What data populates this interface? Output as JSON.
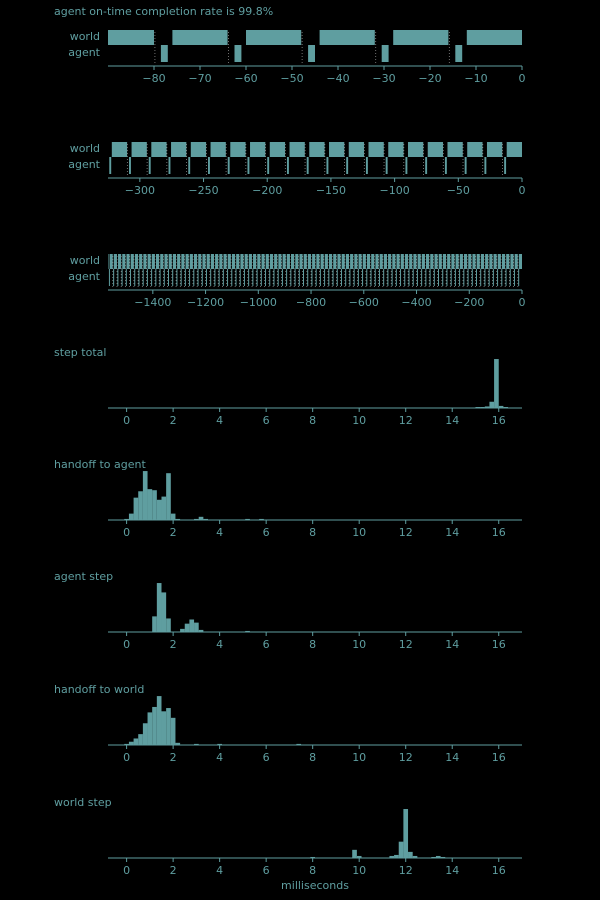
{
  "colors": {
    "background": "#000000",
    "bar": "#5f9ea0",
    "axis": "#5f9ea0",
    "label": "#5f9ea0",
    "tick_label": "#5f9ea0",
    "dotted_line": "#8a8a8a"
  },
  "chart_data": [
    {
      "type": "timeline",
      "title": "agent on-time completion rate is 99.8%",
      "row_labels": [
        "world",
        "agent"
      ],
      "xlim": [
        -90,
        0
      ],
      "xticks": [
        -80,
        -70,
        -60,
        -50,
        -40,
        -30,
        -20,
        -10,
        0
      ],
      "tick_labels": [
        "−80",
        "−70",
        "−60",
        "−50",
        "−40",
        "−30",
        "−20",
        "−10",
        "0"
      ],
      "world_period": 16,
      "world_duration": 12,
      "world_last_start": -12,
      "agent_offset": 13.5,
      "agent_duration": 1.5,
      "dotted_offset": 12.2,
      "dotted_count": 6
    },
    {
      "type": "timeline",
      "row_labels": [
        "world",
        "agent"
      ],
      "xlim": [
        -325,
        0
      ],
      "xticks": [
        -300,
        -250,
        -200,
        -150,
        -100,
        -50,
        0
      ],
      "tick_labels": [
        "−300",
        "−250",
        "−200",
        "−150",
        "−100",
        "−50",
        "0"
      ],
      "world_period": 15.5,
      "world_duration": 12,
      "world_last_start": -12,
      "agent_offset": 13.5,
      "agent_duration": 1.5,
      "dotted_offset": 12.2,
      "dotted_count": 20
    },
    {
      "type": "timeline",
      "row_labels": [
        "world",
        "agent"
      ],
      "xlim": [
        -1570,
        0
      ],
      "xticks": [
        -1400,
        -1200,
        -1000,
        -800,
        -600,
        -400,
        -200,
        0
      ],
      "tick_labels": [
        "−1400",
        "−1200",
        "−1000",
        "−800",
        "−600",
        "−400",
        "−200",
        "0"
      ],
      "world_period": 16,
      "world_duration": 12,
      "world_last_start": -12,
      "agent_offset": 13.5,
      "agent_duration": 1.5,
      "dotted_offset": 12.2,
      "dotted_count": 97
    },
    {
      "type": "bar",
      "title": "step total",
      "xlim": [
        -0.8,
        17
      ],
      "xticks": [
        0,
        2,
        4,
        6,
        8,
        10,
        12,
        14,
        16
      ],
      "bin_width": 0.2,
      "ymax": 48,
      "bins": [
        [
          15.0,
          0.3
        ],
        [
          15.2,
          0.6
        ],
        [
          15.4,
          1.5
        ],
        [
          15.6,
          6
        ],
        [
          15.8,
          47
        ],
        [
          16.0,
          2
        ],
        [
          16.2,
          0.6
        ]
      ]
    },
    {
      "type": "bar",
      "title": "handoff to agent",
      "xlim": [
        -0.8,
        17
      ],
      "xticks": [
        0,
        2,
        4,
        6,
        8,
        10,
        12,
        14,
        16
      ],
      "bin_width": 0.2,
      "ymax": 47,
      "bins": [
        [
          -0.1,
          1
        ],
        [
          0.1,
          6
        ],
        [
          0.3,
          21
        ],
        [
          0.5,
          27
        ],
        [
          0.7,
          46
        ],
        [
          0.9,
          29
        ],
        [
          1.1,
          28
        ],
        [
          1.3,
          19
        ],
        [
          1.5,
          22
        ],
        [
          1.7,
          44
        ],
        [
          1.9,
          6
        ],
        [
          2.1,
          1
        ],
        [
          2.9,
          1
        ],
        [
          3.1,
          3
        ],
        [
          3.3,
          1
        ],
        [
          5.1,
          1
        ],
        [
          5.7,
          1
        ]
      ]
    },
    {
      "type": "bar",
      "title": "agent step",
      "xlim": [
        -0.8,
        17
      ],
      "xticks": [
        0,
        2,
        4,
        6,
        8,
        10,
        12,
        14,
        16
      ],
      "bin_width": 0.2,
      "ymax": 48,
      "bins": [
        [
          1.1,
          15
        ],
        [
          1.3,
          47
        ],
        [
          1.5,
          38
        ],
        [
          1.7,
          13
        ],
        [
          2.3,
          3
        ],
        [
          2.5,
          8
        ],
        [
          2.7,
          12
        ],
        [
          2.9,
          9
        ],
        [
          3.1,
          2
        ],
        [
          5.1,
          1
        ]
      ]
    },
    {
      "type": "bar",
      "title": "handoff to world",
      "xlim": [
        -0.8,
        17
      ],
      "xticks": [
        0,
        2,
        4,
        6,
        8,
        10,
        12,
        14,
        16
      ],
      "bin_width": 0.2,
      "ymax": 46,
      "bins": [
        [
          -0.1,
          1
        ],
        [
          0.1,
          3
        ],
        [
          0.3,
          6
        ],
        [
          0.5,
          10
        ],
        [
          0.7,
          20
        ],
        [
          0.9,
          30
        ],
        [
          1.1,
          35
        ],
        [
          1.3,
          45
        ],
        [
          1.5,
          31
        ],
        [
          1.7,
          34
        ],
        [
          1.9,
          25
        ],
        [
          2.1,
          2
        ],
        [
          2.9,
          1
        ],
        [
          3.9,
          1
        ],
        [
          7.3,
          1
        ]
      ]
    },
    {
      "type": "bar",
      "title": "world step",
      "xlabel": "milliseconds",
      "xlim": [
        -0.8,
        17
      ],
      "xticks": [
        0,
        2,
        4,
        6,
        8,
        10,
        12,
        14,
        16
      ],
      "bin_width": 0.2,
      "ymax": 49,
      "bins": [
        [
          7.9,
          1
        ],
        [
          9.7,
          8
        ],
        [
          9.9,
          2
        ],
        [
          11.3,
          2
        ],
        [
          11.5,
          3
        ],
        [
          11.7,
          16
        ],
        [
          11.9,
          48
        ],
        [
          12.1,
          6
        ],
        [
          12.3,
          2
        ],
        [
          13.1,
          1
        ],
        [
          13.3,
          2
        ],
        [
          13.5,
          1
        ]
      ]
    }
  ]
}
